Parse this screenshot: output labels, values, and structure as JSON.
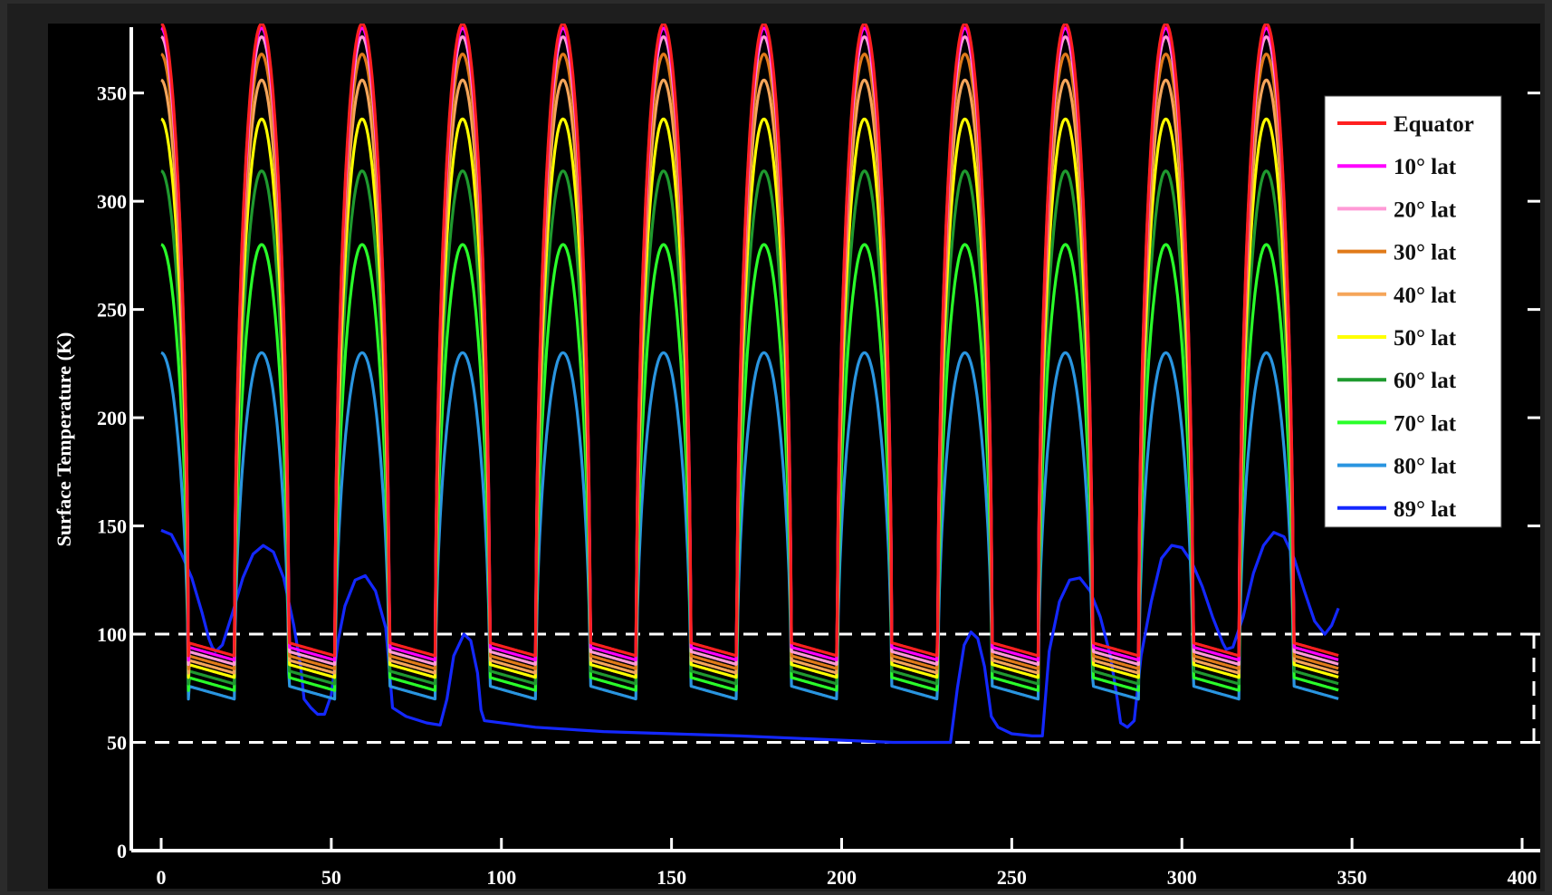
{
  "chart_data": {
    "type": "line",
    "title": "",
    "xlabel": "",
    "ylabel": "Surface Temperature (K)",
    "xlim": [
      0,
      400
    ],
    "ylim": [
      0,
      380
    ],
    "xticks": [
      0,
      50,
      100,
      150,
      200,
      250,
      300,
      350,
      400
    ],
    "yticks": [
      0,
      50,
      100,
      150,
      200,
      250,
      300,
      350
    ],
    "grid": false,
    "legend_position": "top-right",
    "background": "#000000",
    "series": [
      {
        "name": "Equator",
        "color": "#ff2020",
        "peak": 382,
        "night": [
          96,
          90
        ]
      },
      {
        "name": "10° lat",
        "color": "#ff00ff",
        "peak": 380,
        "night": [
          94,
          88
        ]
      },
      {
        "name": "20° lat",
        "color": "#ff9ad6",
        "peak": 376,
        "night": [
          92,
          86
        ]
      },
      {
        "name": "30° lat",
        "color": "#e07a1a",
        "peak": 368,
        "night": [
          90,
          84
        ]
      },
      {
        "name": "40° lat",
        "color": "#f5a55a",
        "peak": 356,
        "night": [
          88,
          82
        ]
      },
      {
        "name": "50° lat",
        "color": "#ffff00",
        "peak": 338,
        "night": [
          86,
          80
        ]
      },
      {
        "name": "60° lat",
        "color": "#1f9a2f",
        "peak": 314,
        "night": [
          83,
          77
        ]
      },
      {
        "name": "70° lat",
        "color": "#2aff2a",
        "peak": 280,
        "night": [
          80,
          74
        ]
      },
      {
        "name": "80° lat",
        "color": "#2a95e0",
        "peak": 230,
        "night": [
          76,
          70
        ]
      },
      {
        "name": "89° lat",
        "color": "#1428ff",
        "points": [
          [
            0,
            148
          ],
          [
            3,
            146
          ],
          [
            6,
            137
          ],
          [
            9,
            126
          ],
          [
            12,
            110
          ],
          [
            14,
            98
          ],
          [
            15,
            94
          ],
          [
            16,
            92
          ],
          [
            18,
            95
          ],
          [
            21,
            110
          ],
          [
            24,
            126
          ],
          [
            27,
            137
          ],
          [
            30,
            141
          ],
          [
            33,
            138
          ],
          [
            36,
            126
          ],
          [
            39,
            104
          ],
          [
            41,
            85
          ],
          [
            42,
            70
          ],
          [
            44,
            66
          ],
          [
            46,
            63
          ],
          [
            48,
            63
          ],
          [
            50,
            72
          ],
          [
            52,
            97
          ],
          [
            54,
            113
          ],
          [
            57,
            125
          ],
          [
            60,
            127
          ],
          [
            63,
            120
          ],
          [
            66,
            103
          ],
          [
            67,
            85
          ],
          [
            68,
            66
          ],
          [
            72,
            62
          ],
          [
            78,
            59
          ],
          [
            82,
            58
          ],
          [
            84,
            70
          ],
          [
            86,
            90
          ],
          [
            89,
            100
          ],
          [
            91,
            97
          ],
          [
            93,
            82
          ],
          [
            94,
            65
          ],
          [
            95,
            60
          ],
          [
            110,
            57
          ],
          [
            130,
            55
          ],
          [
            150,
            54
          ],
          [
            170,
            53
          ],
          [
            200,
            51
          ],
          [
            215,
            50
          ],
          [
            232,
            50
          ],
          [
            234,
            75
          ],
          [
            236,
            95
          ],
          [
            238,
            101
          ],
          [
            240,
            98
          ],
          [
            242,
            85
          ],
          [
            244,
            62
          ],
          [
            246,
            57
          ],
          [
            250,
            54
          ],
          [
            256,
            53
          ],
          [
            259,
            53
          ],
          [
            261,
            92
          ],
          [
            264,
            115
          ],
          [
            267,
            125
          ],
          [
            270,
            126
          ],
          [
            273,
            120
          ],
          [
            276,
            108
          ],
          [
            279,
            90
          ],
          [
            281,
            70
          ],
          [
            282,
            59
          ],
          [
            284,
            57
          ],
          [
            286,
            60
          ],
          [
            288,
            90
          ],
          [
            291,
            115
          ],
          [
            294,
            135
          ],
          [
            297,
            141
          ],
          [
            300,
            140
          ],
          [
            303,
            133
          ],
          [
            306,
            122
          ],
          [
            309,
            108
          ],
          [
            312,
            96
          ],
          [
            313,
            93
          ],
          [
            315,
            94
          ],
          [
            318,
            108
          ],
          [
            321,
            128
          ],
          [
            324,
            141
          ],
          [
            327,
            147
          ],
          [
            330,
            145
          ],
          [
            333,
            135
          ],
          [
            336,
            120
          ],
          [
            339,
            106
          ],
          [
            341,
            102
          ],
          [
            342,
            100
          ],
          [
            344,
            104
          ],
          [
            346,
            112
          ]
        ]
      }
    ],
    "reference_lines": [
      50,
      100
    ]
  }
}
